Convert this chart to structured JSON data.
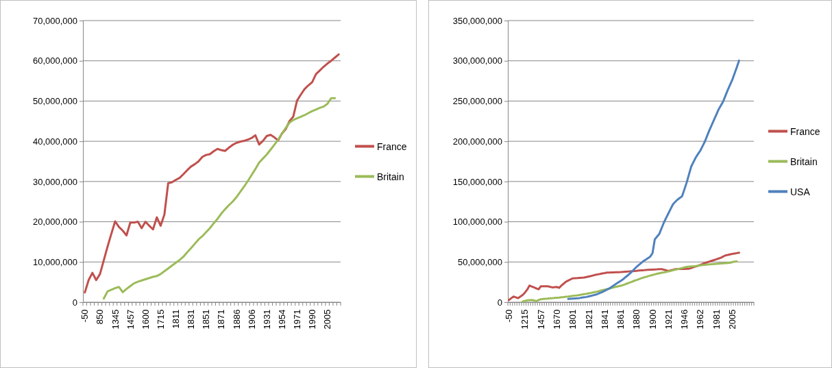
{
  "chart_data": [
    {
      "type": "line",
      "categories": [
        "-50",
        null,
        null,
        null,
        "850",
        null,
        null,
        null,
        "1345",
        null,
        null,
        null,
        "1457",
        null,
        null,
        null,
        "1600",
        null,
        null,
        null,
        "1715",
        null,
        null,
        null,
        "1811",
        null,
        null,
        null,
        "1831",
        null,
        null,
        null,
        "1851",
        null,
        null,
        null,
        "1871",
        null,
        null,
        null,
        "1886",
        null,
        null,
        null,
        "1906",
        null,
        null,
        null,
        "1931",
        null,
        null,
        null,
        "1954",
        null,
        null,
        null,
        "1971",
        null,
        null,
        null,
        "1990",
        null,
        null,
        null,
        "2005",
        null,
        null,
        null
      ],
      "series": [
        {
          "name": "France",
          "color": "#c0504d",
          "values": [
            2400000,
            5500000,
            7300000,
            5500000,
            7000000,
            10400000,
            13800000,
            17000000,
            20100000,
            18700000,
            17800000,
            16600000,
            19800000,
            19800000,
            20000000,
            18400000,
            20000000,
            19000000,
            18100000,
            21100000,
            19000000,
            21800000,
            29600000,
            29800000,
            30400000,
            30900000,
            31800000,
            32800000,
            33700000,
            34300000,
            35000000,
            36100000,
            36600000,
            36800000,
            37500000,
            38100000,
            37800000,
            37600000,
            38400000,
            39100000,
            39600000,
            39900000,
            40100000,
            40400000,
            40800000,
            41500000,
            39200000,
            40100000,
            41300000,
            41600000,
            41000000,
            40200000,
            41900000,
            43000000,
            45000000,
            46100000,
            50100000,
            51600000,
            53000000,
            53900000,
            54700000,
            56700000,
            57600000,
            58500000,
            59300000,
            60000000,
            60800000,
            61600000
          ]
        },
        {
          "name": "Britain",
          "color": "#9bbb59",
          "values": [
            null,
            null,
            null,
            null,
            null,
            900000,
            2700000,
            3100000,
            3500000,
            3800000,
            2500000,
            3300000,
            4000000,
            4700000,
            5100000,
            5400000,
            5700000,
            6000000,
            6300000,
            6500000,
            7000000,
            7700000,
            8400000,
            9100000,
            9800000,
            10500000,
            11300000,
            12400000,
            13400000,
            14500000,
            15600000,
            16400000,
            17400000,
            18400000,
            19600000,
            20700000,
            22000000,
            23100000,
            24100000,
            25000000,
            26100000,
            27400000,
            28700000,
            30100000,
            31600000,
            33100000,
            34700000,
            35700000,
            36700000,
            37900000,
            39100000,
            40400000,
            41900000,
            43300000,
            44600000,
            45300000,
            45700000,
            46100000,
            46500000,
            47000000,
            47500000,
            47900000,
            48300000,
            48600000,
            49300000,
            50700000,
            50700000,
            null
          ]
        }
      ],
      "ylim": [
        0,
        70000000
      ],
      "yticks": [
        {
          "value": 0,
          "label": "0"
        },
        {
          "value": 10000000,
          "label": "10,000,000"
        },
        {
          "value": 20000000,
          "label": "20,000,000"
        },
        {
          "value": 30000000,
          "label": "30,000,000"
        },
        {
          "value": 40000000,
          "label": "40,000,000"
        },
        {
          "value": 50000000,
          "label": "50,000,000"
        },
        {
          "value": 60000000,
          "label": "60,000,000"
        },
        {
          "value": 70000000,
          "label": "70,000,000"
        }
      ],
      "grid": "y",
      "legend": "right",
      "marker": "none",
      "line_style": "solid"
    },
    {
      "type": "line",
      "categories": [
        "-50",
        null,
        null,
        null,
        null,
        null,
        null,
        "1215",
        null,
        null,
        null,
        null,
        null,
        null,
        "1457",
        null,
        null,
        null,
        null,
        null,
        null,
        "1670",
        null,
        null,
        null,
        null,
        null,
        null,
        "1801",
        null,
        null,
        null,
        null,
        null,
        null,
        "1821",
        null,
        null,
        null,
        null,
        null,
        null,
        "1841",
        null,
        null,
        null,
        null,
        null,
        null,
        "1861",
        null,
        null,
        null,
        null,
        null,
        null,
        "1880",
        null,
        null,
        null,
        null,
        null,
        null,
        "1900",
        null,
        null,
        null,
        null,
        null,
        null,
        "1921",
        null,
        null,
        null,
        null,
        null,
        null,
        "1946",
        null,
        null,
        null,
        null,
        null,
        null,
        "1962",
        null,
        null,
        null,
        null,
        null,
        null,
        "1981",
        null,
        null,
        null,
        null,
        null,
        null,
        "2005",
        null,
        null,
        null,
        null,
        null,
        null,
        null,
        null,
        null
      ],
      "series": [
        {
          "name": "France",
          "color": "#c0504d",
          "values": [
            2800000,
            5000000,
            7000000,
            6000000,
            5000000,
            7000000,
            9000000,
            12000000,
            15600000,
            20700000,
            19500000,
            18400000,
            17200000,
            16000000,
            19800000,
            19800000,
            19800000,
            19800000,
            19100000,
            18400000,
            18700000,
            19000000,
            17800000,
            20700000,
            23000000,
            25500000,
            26900000,
            28300000,
            29700000,
            29900000,
            30000000,
            30200000,
            30400000,
            30600000,
            31300000,
            32000000,
            32600000,
            33300000,
            34000000,
            34600000,
            35100000,
            35700000,
            36200000,
            36800000,
            36900000,
            37000000,
            37100000,
            37200000,
            37300000,
            37400000,
            37600000,
            37900000,
            38100000,
            38300000,
            38600000,
            38800000,
            39000000,
            39300000,
            39500000,
            39700000,
            40000000,
            40200000,
            40400000,
            40500000,
            40700000,
            40800000,
            41000000,
            41100000,
            40400000,
            39600000,
            38800000,
            39600000,
            40300000,
            41100000,
            41200000,
            41300000,
            41300000,
            41400000,
            41500000,
            41600000,
            42500000,
            43500000,
            44400000,
            45300000,
            46400000,
            47600000,
            48700000,
            49600000,
            50500000,
            51500000,
            52400000,
            53300000,
            54300000,
            55200000,
            56700000,
            58100000,
            58700000,
            59400000,
            60000000,
            60500000,
            61000000,
            61500000,
            null,
            null,
            null,
            null,
            null,
            null
          ]
        },
        {
          "name": "Britain",
          "color": "#9bbb59",
          "values": [
            null,
            null,
            null,
            null,
            null,
            null,
            900000,
            1600000,
            2300000,
            2600000,
            2800000,
            2100000,
            1400000,
            2600000,
            3700000,
            4000000,
            4300000,
            4500000,
            4800000,
            5000000,
            5300000,
            5500000,
            5700000,
            6100000,
            6400000,
            6800000,
            7100000,
            7500000,
            7800000,
            8200000,
            8500000,
            9000000,
            9500000,
            10000000,
            10500000,
            11100000,
            11600000,
            12200000,
            12700000,
            13400000,
            14200000,
            14900000,
            15600000,
            16300000,
            17000000,
            17700000,
            18400000,
            19100000,
            19800000,
            20500000,
            21200000,
            22300000,
            23400000,
            24400000,
            25500000,
            26600000,
            27600000,
            28700000,
            29700000,
            30600000,
            31400000,
            32300000,
            33100000,
            33800000,
            34600000,
            35300000,
            36000000,
            36600000,
            37100000,
            37700000,
            38200000,
            38900000,
            39700000,
            40400000,
            41100000,
            41800000,
            42500000,
            43200000,
            43900000,
            44200000,
            44500000,
            44700000,
            45000000,
            45400000,
            45800000,
            46100000,
            46500000,
            46800000,
            47000000,
            47300000,
            47500000,
            47700000,
            47900000,
            48100000,
            48300000,
            48500000,
            48800000,
            49000000,
            49800000,
            50500000,
            50700000,
            null,
            null,
            null,
            null,
            null,
            null,
            null
          ]
        },
        {
          "name": "USA",
          "color": "#4f81bd",
          "values": [
            null,
            null,
            null,
            null,
            null,
            null,
            null,
            null,
            null,
            null,
            null,
            null,
            null,
            null,
            null,
            null,
            null,
            null,
            null,
            null,
            null,
            null,
            null,
            null,
            null,
            null,
            4000000,
            4200000,
            4400000,
            4600000,
            4800000,
            5200000,
            5700000,
            6100000,
            6500000,
            7200000,
            7900000,
            8600000,
            9300000,
            10400000,
            11600000,
            12700000,
            14100000,
            15600000,
            17000000,
            18900000,
            20800000,
            22700000,
            24600000,
            26400000,
            28300000,
            30700000,
            33000000,
            35400000,
            38200000,
            41100000,
            43900000,
            46300000,
            48600000,
            51000000,
            52900000,
            54800000,
            56700000,
            60900000,
            78000000,
            81500000,
            85000000,
            92000000,
            99000000,
            104800000,
            110500000,
            116200000,
            121800000,
            124700000,
            127500000,
            129600000,
            131700000,
            140200000,
            148700000,
            158700000,
            168600000,
            174300000,
            179900000,
            184200000,
            188400000,
            194100000,
            199700000,
            206800000,
            213900000,
            220300000,
            226600000,
            233000000,
            239400000,
            244400000,
            249300000,
            256400000,
            263500000,
            269900000,
            276200000,
            284000000,
            291800000,
            300300000,
            null,
            null,
            null,
            null,
            null,
            null
          ]
        }
      ],
      "ylim": [
        0,
        350000000
      ],
      "yticks": [
        {
          "value": 0,
          "label": "0"
        },
        {
          "value": 50000000,
          "label": "50,000,000"
        },
        {
          "value": 100000000,
          "label": "100,000,000"
        },
        {
          "value": 150000000,
          "label": "150,000,000"
        },
        {
          "value": 200000000,
          "label": "200,000,000"
        },
        {
          "value": 250000000,
          "label": "250,000,000"
        },
        {
          "value": 300000000,
          "label": "300,000,000"
        },
        {
          "value": 350000000,
          "label": "350,000,000"
        }
      ],
      "grid": "y",
      "legend": "right",
      "marker": "none",
      "line_style": "solid"
    }
  ]
}
